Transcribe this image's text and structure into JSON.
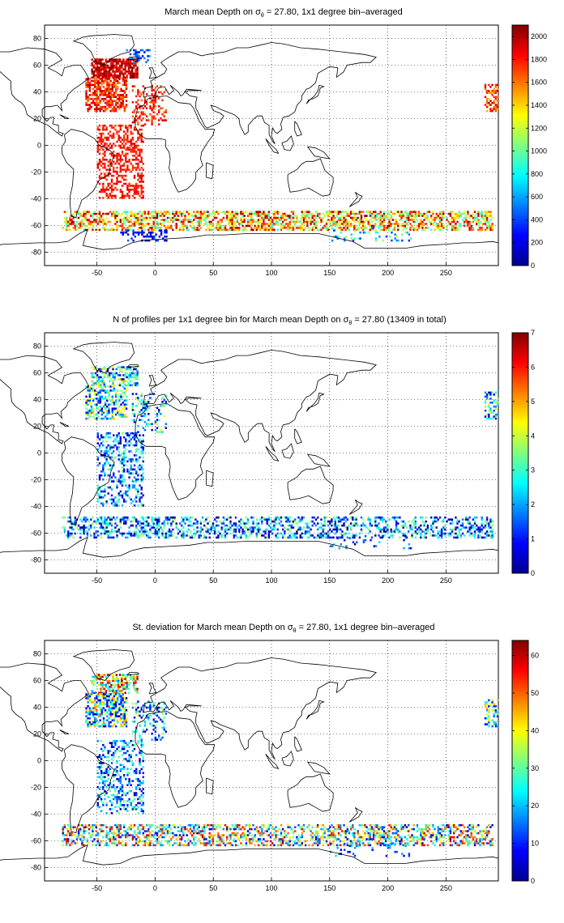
{
  "panels": [
    {
      "title_prefix": "March mean Depth on ",
      "sigma_symbol": "σ",
      "sigma_sub": "θ",
      "title_suffix": " = 27.80, 1x1 degree bin–averaged",
      "colorbar_ticks": [
        "0",
        "200",
        "400",
        "600",
        "800",
        "1000",
        "1200",
        "1400",
        "1600",
        "1800",
        "2000"
      ],
      "colorbar_range": [
        0,
        2100
      ],
      "x_ticks": [
        "-50",
        "0",
        "50",
        "100",
        "150",
        "200",
        "250"
      ],
      "y_ticks": [
        "80",
        "60",
        "40",
        "20",
        "0",
        "-20",
        "-40",
        "-60",
        "-80"
      ]
    },
    {
      "title_prefix": "N of profiles per 1x1 degree bin for March mean Depth on ",
      "sigma_symbol": "σ",
      "sigma_sub": "θ",
      "title_suffix": " = 27.80 (13409 in total)",
      "colorbar_ticks": [
        "0",
        "1",
        "2",
        "3",
        "4",
        "5",
        "6",
        "7"
      ],
      "colorbar_range": [
        0,
        7
      ],
      "x_ticks": [
        "-50",
        "0",
        "50",
        "100",
        "150",
        "200",
        "250"
      ],
      "y_ticks": [
        "80",
        "60",
        "40",
        "20",
        "0",
        "-20",
        "-40",
        "-60",
        "-80"
      ]
    },
    {
      "title_prefix": "St. deviation for March mean Depth on ",
      "sigma_symbol": "σ",
      "sigma_sub": "θ",
      "title_suffix": " = 27.80, 1x1 degree bin–averaged",
      "colorbar_ticks": [
        "0",
        "10",
        "20",
        "30",
        "40",
        "50",
        "60"
      ],
      "colorbar_range": [
        0,
        64
      ],
      "x_ticks": [
        "-50",
        "0",
        "50",
        "100",
        "150",
        "200",
        "250"
      ],
      "y_ticks": [
        "80",
        "60",
        "40",
        "20",
        "0",
        "-20",
        "-40",
        "-60",
        "-80"
      ]
    }
  ],
  "map_extent": {
    "lon": [
      -95,
      295
    ],
    "lat": [
      -90,
      90
    ]
  }
}
